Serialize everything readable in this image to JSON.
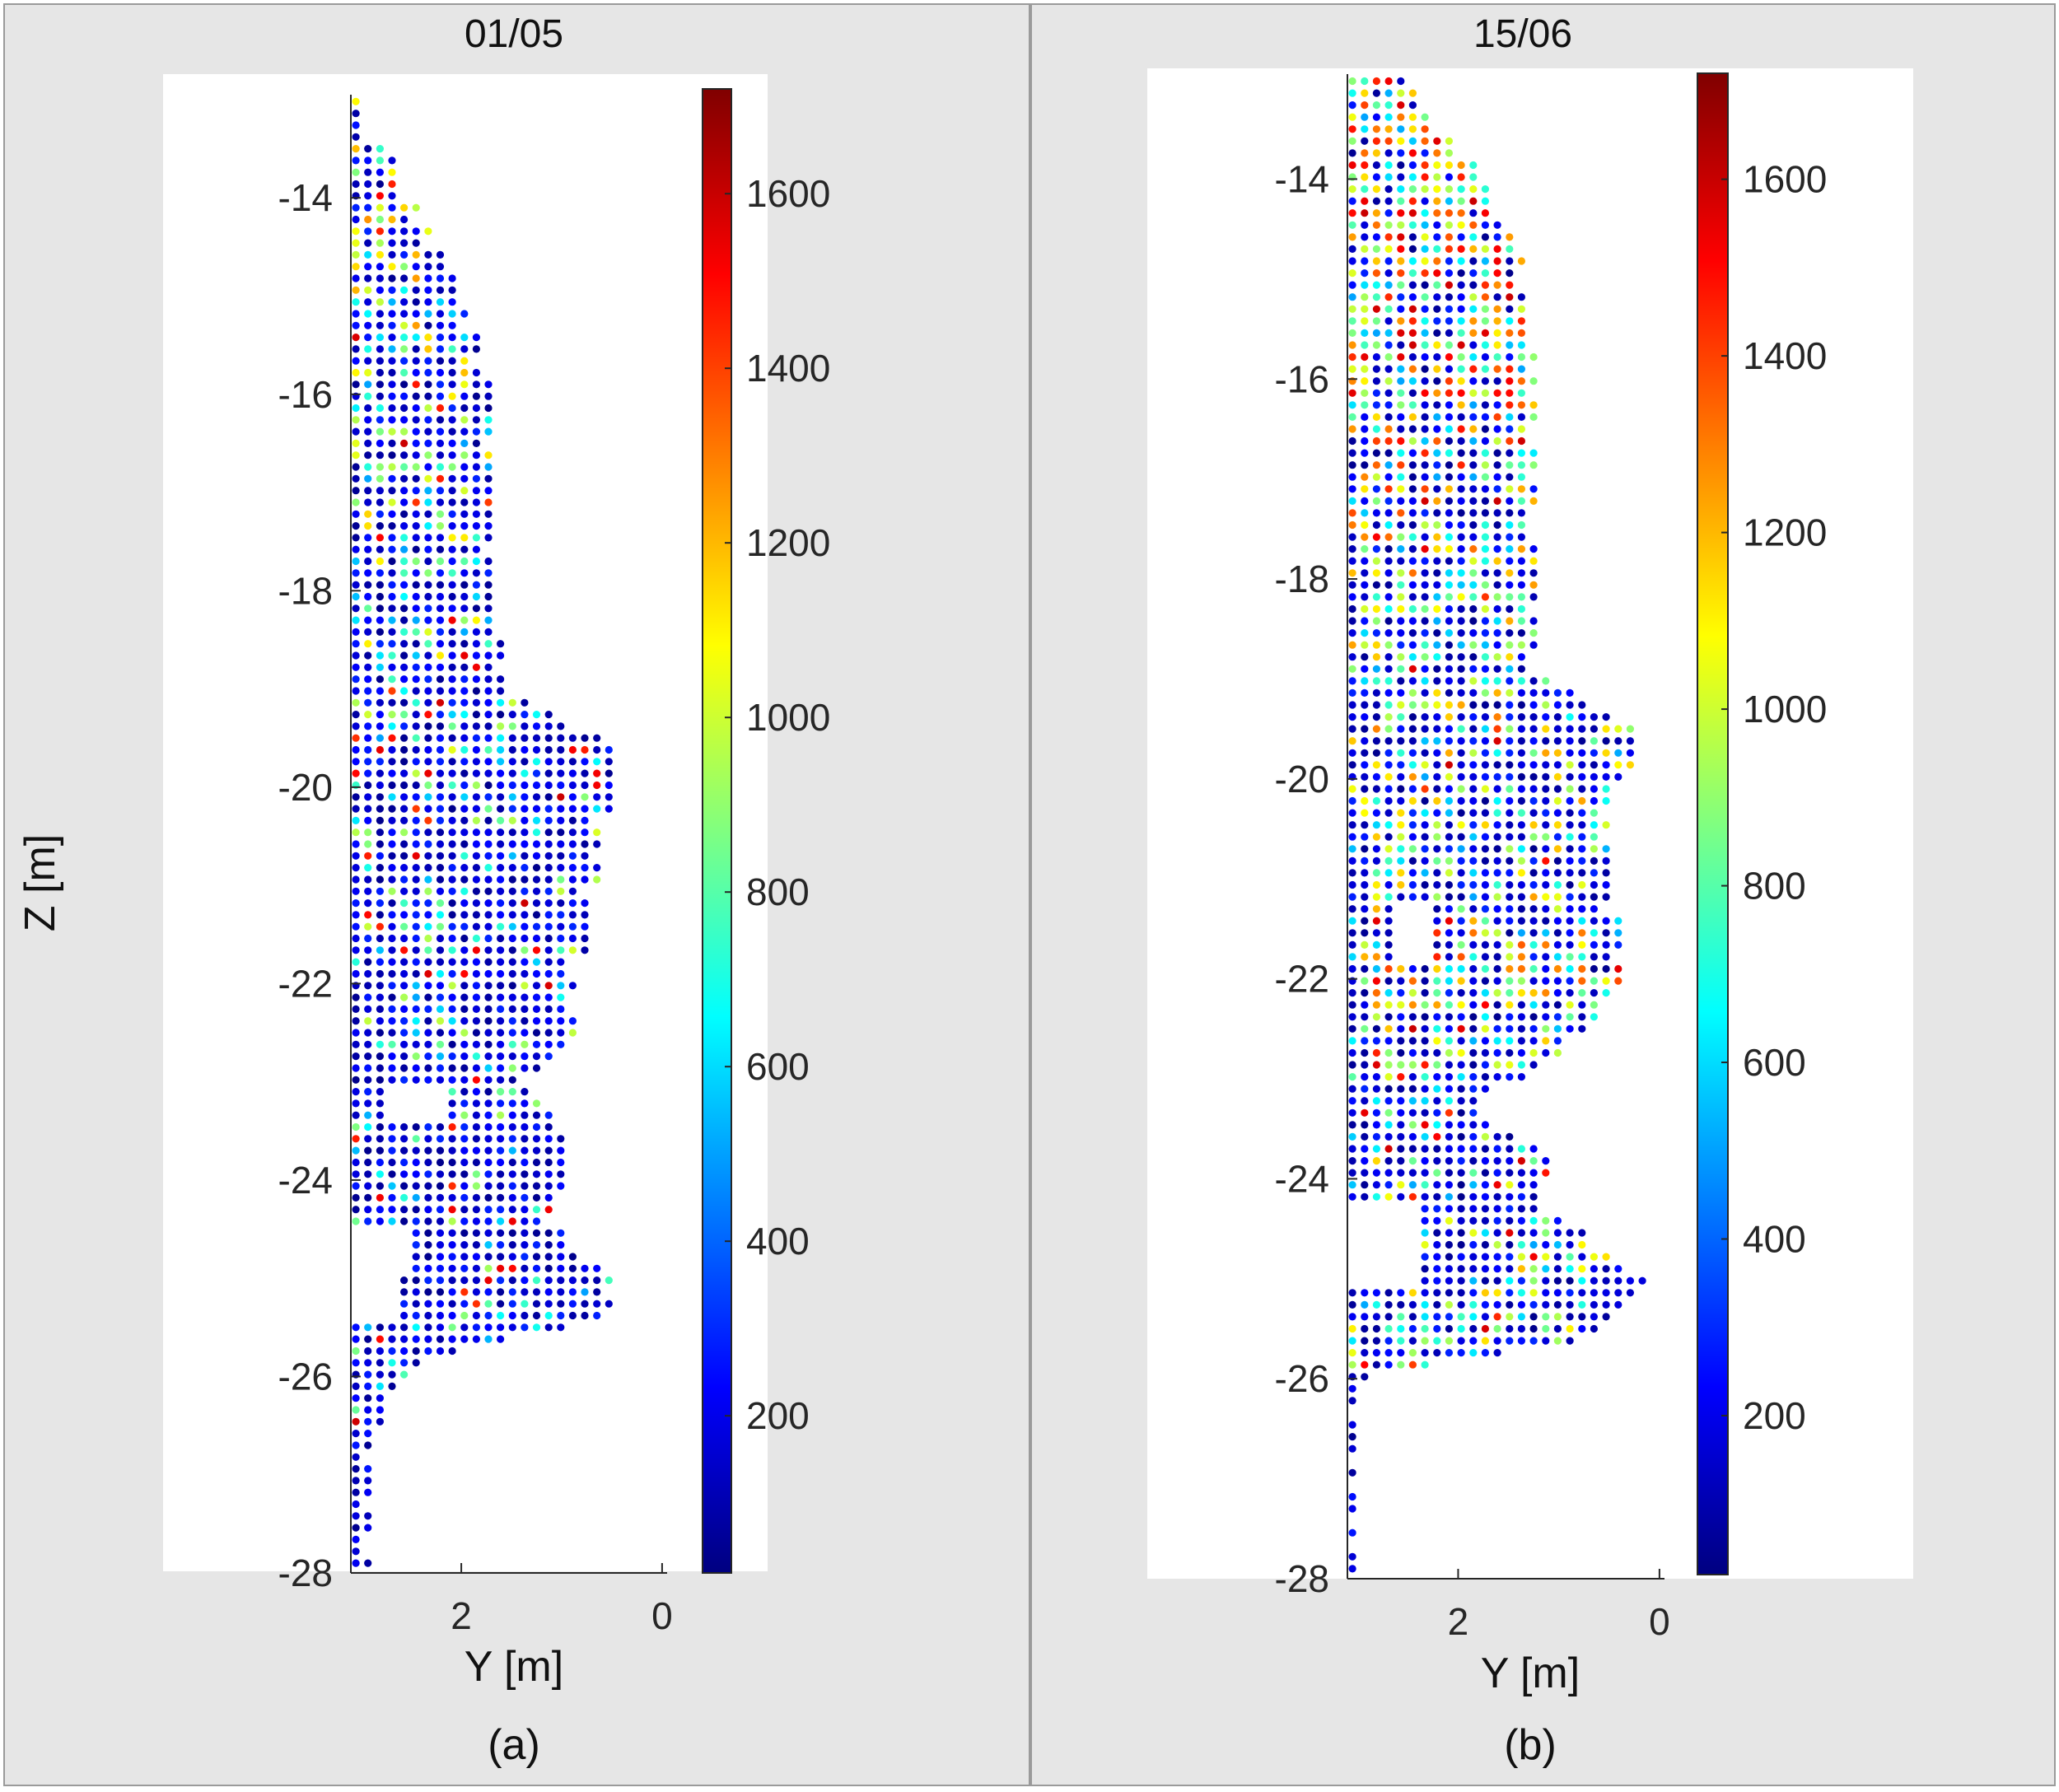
{
  "chart_data": [
    {
      "type": "scatter",
      "title": "01/05",
      "xlabel": "Y [m]",
      "ylabel": "Z [m]",
      "caption": "(a)",
      "xlim": [
        3.1,
        -0.05
      ],
      "ylim": [
        -28,
        -12.95
      ],
      "xticks": [
        2,
        0
      ],
      "xtick_labels": [
        "2",
        "0"
      ],
      "yticks": [
        -14,
        -16,
        -18,
        -20,
        -22,
        -24,
        -26,
        -28
      ],
      "ytick_labels": [
        "-14",
        "-16",
        "-18",
        "-20",
        "-22",
        "-24",
        "-26",
        "-28"
      ],
      "colorbar": {
        "colormap": "jet",
        "range": [
          20,
          1720
        ],
        "ticks": [
          200,
          400,
          600,
          800,
          1000,
          1200,
          1400,
          1600
        ],
        "tick_labels": [
          "200",
          "400",
          "600",
          "800",
          "1000",
          "1200",
          "1400",
          "1600"
        ]
      },
      "grid": false,
      "point_spacing_m": 0.12,
      "profile": [
        [
          -13.0,
          0.0,
          0.55
        ],
        [
          -14.0,
          0.6,
          0.45
        ],
        [
          -15.0,
          1.1,
          0.4
        ],
        [
          -16.0,
          1.35,
          0.34
        ],
        [
          -17.0,
          1.35,
          0.3
        ],
        [
          -18.0,
          1.4,
          0.28
        ],
        [
          -19.0,
          1.5,
          0.24
        ],
        [
          -19.6,
          2.6,
          0.2
        ],
        [
          -20.5,
          2.5,
          0.18
        ],
        [
          -21.5,
          2.3,
          0.18
        ],
        [
          -22.5,
          2.2,
          0.16
        ],
        [
          -23.0,
          1.7,
          0.14
        ],
        [
          -23.5,
          2.05,
          0.14
        ],
        [
          -24.0,
          2.05,
          0.12
        ],
        [
          -24.5,
          2.0,
          0.12
        ],
        [
          -25.0,
          2.6,
          0.16
        ],
        [
          -25.4,
          2.6,
          0.16
        ],
        [
          -25.8,
          0.7,
          0.08
        ],
        [
          -26.5,
          0.22,
          0.04
        ],
        [
          -28.0,
          0.22,
          0.04
        ]
      ],
      "gaps": [
        {
          "y": [
            2.2,
            2.75
          ],
          "z": [
            -23.45,
            -23.1
          ]
        },
        {
          "y": [
            2.45,
            3.1
          ],
          "z": [
            -24.95,
            -24.45
          ]
        },
        {
          "y": [
            2.65,
            3.1
          ],
          "z": [
            -25.45,
            -24.95
          ]
        }
      ]
    },
    {
      "type": "scatter",
      "title": "15/06",
      "xlabel": "Y [m]",
      "ylabel": "",
      "caption": "(b)",
      "xlim": [
        3.1,
        -0.05
      ],
      "ylim": [
        -28,
        -12.95
      ],
      "xticks": [
        2,
        0
      ],
      "xtick_labels": [
        "2",
        "0"
      ],
      "yticks": [
        -14,
        -16,
        -18,
        -20,
        -22,
        -24,
        -26,
        -28
      ],
      "ytick_labels": [
        "-14",
        "-16",
        "-18",
        "-20",
        "-22",
        "-24",
        "-26",
        "-28"
      ],
      "colorbar": {
        "colormap": "jet",
        "range": [
          20,
          1720
        ],
        "ticks": [
          200,
          400,
          600,
          800,
          1000,
          1200,
          1400,
          1600
        ],
        "tick_labels": [
          "200",
          "400",
          "600",
          "800",
          "1000",
          "1200",
          "1400",
          "1600"
        ]
      },
      "grid": false,
      "point_spacing_m": 0.12,
      "profile": [
        [
          -13.0,
          0.5,
          0.9
        ],
        [
          -14.0,
          1.4,
          0.85
        ],
        [
          -15.0,
          1.75,
          0.8
        ],
        [
          -16.0,
          1.9,
          0.7
        ],
        [
          -17.0,
          1.85,
          0.55
        ],
        [
          -18.0,
          1.85,
          0.45
        ],
        [
          -19.0,
          1.9,
          0.4
        ],
        [
          -19.5,
          2.9,
          0.45
        ],
        [
          -20.3,
          2.6,
          0.4
        ],
        [
          -21.0,
          2.6,
          0.35
        ],
        [
          -22.0,
          2.7,
          0.55
        ],
        [
          -22.7,
          2.2,
          0.3
        ],
        [
          -23.3,
          1.2,
          0.15
        ],
        [
          -23.8,
          2.0,
          0.3
        ],
        [
          -24.3,
          2.0,
          0.2
        ],
        [
          -25.0,
          2.9,
          0.35
        ],
        [
          -25.6,
          2.35,
          0.3
        ],
        [
          -26.0,
          0.1,
          0.05
        ],
        [
          -28.0,
          0.1,
          0.05
        ]
      ],
      "gaps": [
        {
          "y": [
            2.35,
            3.1
          ],
          "z": [
            -25.1,
            -24.3
          ]
        },
        {
          "y": [
            2.3,
            2.6
          ],
          "z": [
            -21.8,
            -21.3
          ]
        }
      ]
    }
  ]
}
